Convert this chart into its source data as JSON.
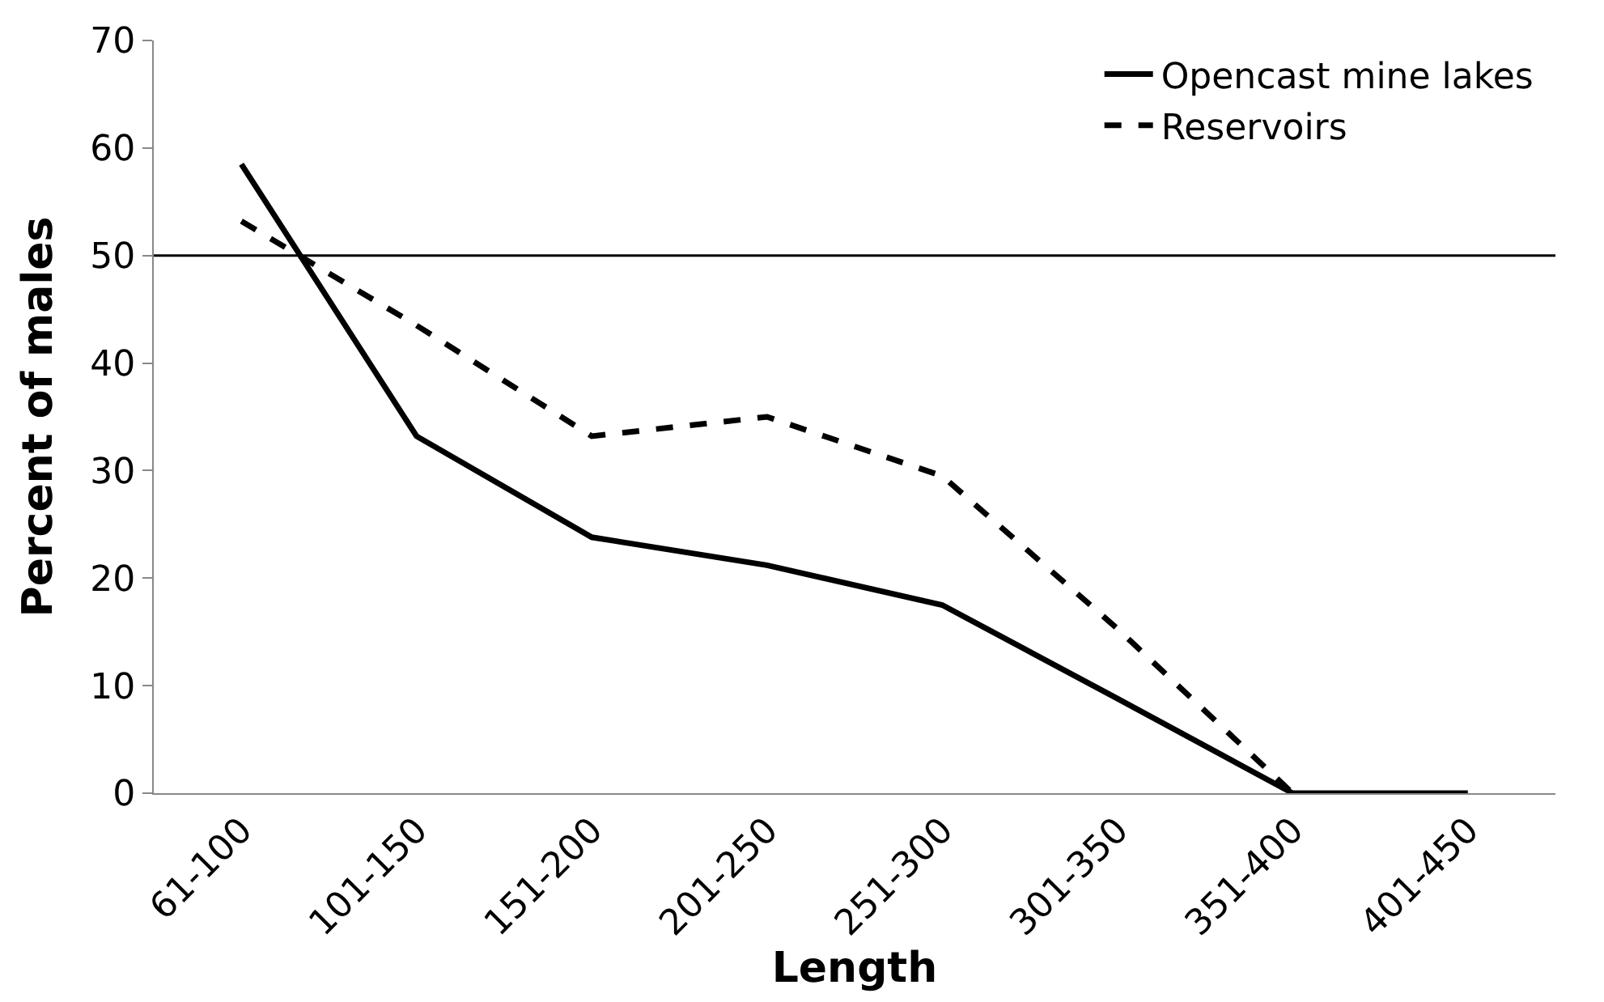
{
  "chart_data": {
    "type": "line",
    "xlabel": "Length",
    "ylabel": "Percent of males",
    "categories": [
      "61-100",
      "101-150",
      "151-200",
      "201-250",
      "251-300",
      "301-350",
      "351-400",
      "401-450"
    ],
    "series": [
      {
        "name": "Opencast mine lakes",
        "color": "#000000",
        "line_style": "solid",
        "values": [
          58.5,
          33.2,
          23.8,
          21.2,
          17.5,
          8.8,
          0,
          0
        ]
      },
      {
        "name": "Reservoirs",
        "color": "#000000",
        "line_style": "dashed",
        "values": [
          53.2,
          43.5,
          33.2,
          35,
          29.5,
          15.3,
          0,
          null
        ]
      }
    ],
    "ylim": [
      0,
      70
    ],
    "yticks": [
      0,
      10,
      20,
      30,
      40,
      50,
      60,
      70
    ],
    "legend": "top right",
    "marker": "none",
    "ref_lines": [
      {
        "axis": "y",
        "value": 50,
        "color": "#000000",
        "line_style": "solid"
      }
    ]
  }
}
